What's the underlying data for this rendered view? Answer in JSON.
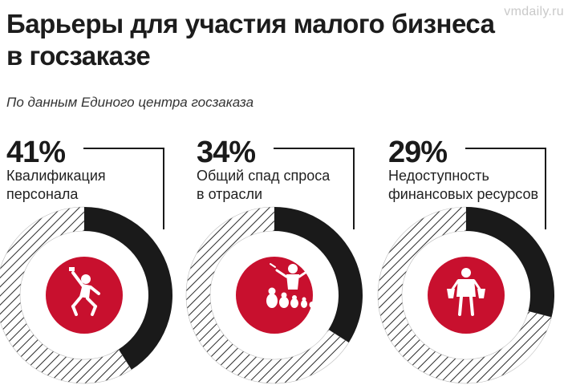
{
  "watermark": "vmdaily.ru",
  "header": {
    "title_line1": "Барьеры для участия малого бизнеса",
    "title_line2": "в госзаказе",
    "subtitle": "По данным  Единого центра госзаказа"
  },
  "colors": {
    "accent": "#c8102e",
    "dark": "#1a1a1a",
    "hatch": "#2a2a2a"
  },
  "chart_data": {
    "type": "pie",
    "title": "Барьеры для участия малого бизнеса в госзаказе",
    "subtitle": "По данным  Единого центра госзаказа",
    "unit": "%",
    "categories": [
      "Квалификация персонала",
      "Общий спад спроса в отрасли",
      "Недоступность финансовых ресурсов"
    ],
    "items": [
      {
        "value": 41,
        "value_label": "41%",
        "label_line1": "Квалификация",
        "label_line2": "персонала",
        "icon": "worker-figure-icon"
      },
      {
        "value": 34,
        "value_label": "34%",
        "label_line1": "Общий спад спроса",
        "label_line2": "в отрасли",
        "icon": "seller-with-dolls-icon"
      },
      {
        "value": 29,
        "value_label": "29%",
        "label_line1": "Недоступность",
        "label_line2": "финансовых ресурсов",
        "icon": "empty-pockets-icon"
      }
    ]
  }
}
